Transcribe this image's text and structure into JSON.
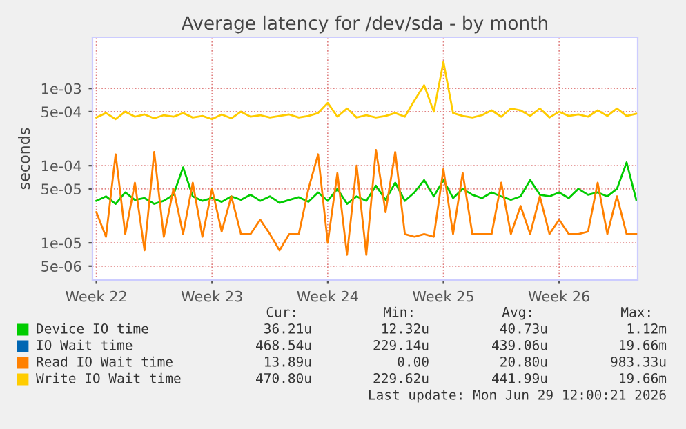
{
  "chart_data": {
    "type": "line",
    "title": "Average latency for /dev/sda - by month",
    "ylabel": "seconds",
    "log": true,
    "grid": true,
    "legend": "bottom",
    "marker": "none",
    "line_style": "solid",
    "categories": [
      "Week 22",
      null,
      null,
      null,
      null,
      null,
      null,
      null,
      null,
      null,
      null,
      null,
      "Week 23",
      null,
      null,
      null,
      null,
      null,
      null,
      null,
      null,
      null,
      null,
      null,
      "Week 24",
      null,
      null,
      null,
      null,
      null,
      null,
      null,
      null,
      null,
      null,
      null,
      "Week 25",
      null,
      null,
      null,
      null,
      null,
      null,
      null,
      null,
      null,
      null,
      null,
      "Week 26",
      null,
      null,
      null,
      null,
      null,
      null,
      null,
      null
    ],
    "ylim": [
      3.3e-06,
      0.0046
    ],
    "yticks": [
      {
        "value": 0.001,
        "label": "1e-03"
      },
      {
        "value": 0.0005,
        "label": "5e-04"
      },
      {
        "value": 0.0001,
        "label": "1e-04"
      },
      {
        "value": 5e-05,
        "label": "5e-05"
      },
      {
        "value": 1e-05,
        "label": "1e-05"
      },
      {
        "value": 5e-06,
        "label": "5e-06"
      }
    ],
    "series": [
      {
        "name": "Device IO time",
        "color": "#00cc00",
        "values": [
          3.5e-05,
          4e-05,
          3.2e-05,
          4.5e-05,
          3.6e-05,
          3.8e-05,
          3.2e-05,
          3.5e-05,
          4.2e-05,
          9.5e-05,
          4e-05,
          3.5e-05,
          3.8e-05,
          3.4e-05,
          4e-05,
          3.6e-05,
          4.2e-05,
          3.5e-05,
          4e-05,
          3.3e-05,
          3.6e-05,
          3.9e-05,
          3.4e-05,
          4.5e-05,
          3.5e-05,
          5e-05,
          3.2e-05,
          4e-05,
          3.5e-05,
          5.5e-05,
          3.6e-05,
          6e-05,
          3.5e-05,
          4.5e-05,
          6.5e-05,
          4e-05,
          6.5e-05,
          3.8e-05,
          5e-05,
          4.2e-05,
          3.8e-05,
          4.5e-05,
          4e-05,
          3.6e-05,
          4e-05,
          6.5e-05,
          4.2e-05,
          4e-05,
          4.5e-05,
          3.8e-05,
          5e-05,
          4.2e-05,
          4.5e-05,
          4e-05,
          5e-05,
          0.00011,
          3.6e-05
        ]
      },
      {
        "name": "IO Wait time",
        "color": "#0066b3",
        "values": [
          null,
          null,
          null,
          null,
          null,
          null,
          null,
          null,
          null,
          null,
          null,
          null,
          null,
          null,
          null,
          null,
          null,
          null,
          null,
          null,
          null,
          null,
          null,
          null,
          null,
          null,
          null,
          null,
          null,
          null,
          null,
          null,
          null,
          null,
          null,
          null,
          null,
          null,
          null,
          null,
          null,
          null,
          null,
          null,
          null,
          null,
          null,
          null,
          null,
          null,
          null,
          null,
          null,
          null,
          null,
          null,
          null
        ]
      },
      {
        "name": "Read IO Wait time",
        "color": "#ff8000",
        "values": [
          2.5e-05,
          1.2e-05,
          0.00014,
          1.3e-05,
          6e-05,
          8e-06,
          0.00015,
          1.2e-05,
          5e-05,
          1.3e-05,
          6e-05,
          1.2e-05,
          5e-05,
          1.4e-05,
          4e-05,
          1.3e-05,
          1.3e-05,
          2e-05,
          1.3e-05,
          8e-06,
          1.3e-05,
          1.3e-05,
          5e-05,
          0.00014,
          1e-05,
          8e-05,
          7e-06,
          0.0001,
          7e-06,
          0.00016,
          2.5e-05,
          0.00015,
          1.3e-05,
          1.2e-05,
          1.3e-05,
          1.2e-05,
          9e-05,
          1.3e-05,
          8e-05,
          1.3e-05,
          1.3e-05,
          1.3e-05,
          6e-05,
          1.3e-05,
          3e-05,
          1.3e-05,
          4e-05,
          1.3e-05,
          2e-05,
          1.3e-05,
          1.3e-05,
          1.4e-05,
          6e-05,
          1.3e-05,
          4e-05,
          1.3e-05,
          1.3e-05
        ]
      },
      {
        "name": "Write IO Wait time",
        "color": "#ffcc00",
        "values": [
          0.00042,
          0.00048,
          0.0004,
          0.0005,
          0.00043,
          0.00046,
          0.00041,
          0.00045,
          0.00043,
          0.00048,
          0.00042,
          0.00044,
          0.0004,
          0.00046,
          0.00041,
          0.0005,
          0.00043,
          0.00045,
          0.00042,
          0.00044,
          0.00046,
          0.00042,
          0.00044,
          0.00048,
          0.00065,
          0.00043,
          0.00055,
          0.00042,
          0.00045,
          0.00042,
          0.00044,
          0.00048,
          0.00043,
          0.0007,
          0.0011,
          0.0005,
          0.0022,
          0.00048,
          0.00044,
          0.00042,
          0.00045,
          0.00052,
          0.00043,
          0.00055,
          0.00052,
          0.00044,
          0.00055,
          0.00042,
          0.0005,
          0.00044,
          0.00046,
          0.00043,
          0.00052,
          0.00044,
          0.00055,
          0.00044,
          0.00047
        ]
      }
    ],
    "annotations": [
      "Cur:",
      "Min:",
      "Avg:",
      "Max:",
      "36.21u",
      "12.32u",
      "40.73u",
      "1.12m",
      "468.54u",
      "229.14u",
      "439.06u",
      "19.66m",
      "13.89u",
      "0.00",
      "20.80u",
      "983.33u",
      "470.80u",
      "229.62u",
      "441.99u",
      "19.66m",
      "Last update: Mon Jun 29 12:00:21 2026"
    ]
  }
}
